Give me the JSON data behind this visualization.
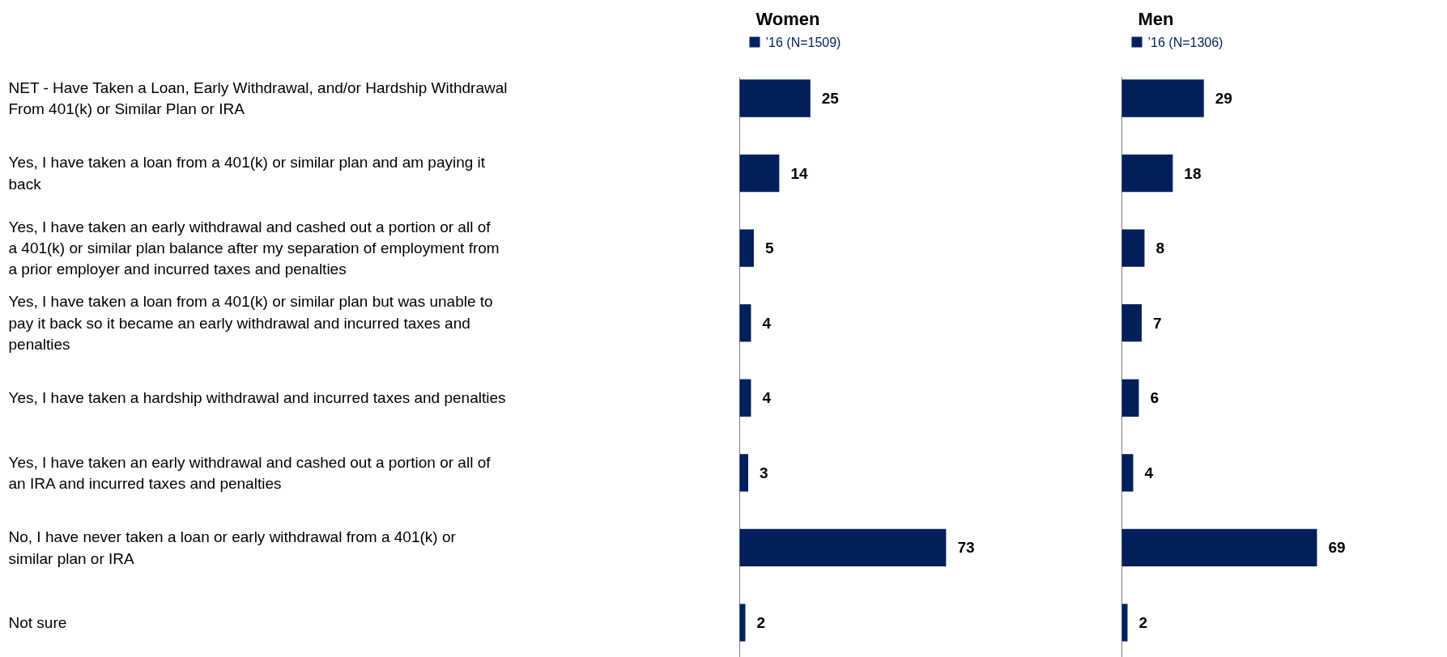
{
  "chart_data": [
    {
      "type": "bar",
      "orientation": "horizontal",
      "title": "Women",
      "legend": "top left",
      "data_labels": true,
      "categories": [
        "NET - Have Taken a Loan, Early Withdrawal, and/or Hardship Withdrawal From 401(k) or Similar Plan or IRA",
        "Yes, I have taken a loan from a 401(k) or similar plan and am paying it back",
        "Yes, I have taken an early withdrawal and cashed out a portion or all of a 401(k) or similar plan balance after my separation of employment from a prior employer and incurred taxes and penalties",
        "Yes, I have taken a loan from a 401(k) or similar plan but was unable to pay it back so it became an early withdrawal and incurred taxes and penalties",
        "Yes, I have taken a hardship withdrawal and incurred taxes and penalties",
        "Yes, I have taken an early withdrawal and cashed out a portion or all of an IRA and incurred taxes and penalties",
        "No, I have never taken a loan or early withdrawal from a 401(k) or similar plan or IRA",
        "Not sure"
      ],
      "series": [
        {
          "name": "’16 (N=1509)",
          "color": "#001f5b",
          "values": [
            25,
            14,
            5,
            4,
            4,
            3,
            73,
            2
          ]
        }
      ]
    },
    {
      "type": "bar",
      "orientation": "horizontal",
      "title": "Men",
      "legend": "top left",
      "data_labels": true,
      "tick_labels": false,
      "categories": [
        "NET - Have Taken a Loan, Early Withdrawal, and/or Hardship Withdrawal From 401(k) or Similar Plan or IRA",
        "Yes, I have taken a loan from a 401(k) or similar plan and am paying it back",
        "Yes, I have taken an early withdrawal and cashed out a portion or all of a 401(k) or similar plan balance after my separation of employment from a prior employer and incurred taxes and penalties",
        "Yes, I have taken a loan from a 401(k) or similar plan but was unable to pay it back so it became an early withdrawal and incurred taxes and penalties",
        "Yes, I have taken a hardship withdrawal and incurred taxes and penalties",
        "Yes, I have taken an early withdrawal and cashed out a portion or all of an IRA and incurred taxes and penalties",
        "No, I have never taken a loan or early withdrawal from a 401(k) or similar plan or IRA",
        "Not sure"
      ],
      "series": [
        {
          "name": "’16 (N=1306)",
          "color": "#001f5b",
          "values": [
            29,
            18,
            8,
            7,
            6,
            4,
            69,
            2
          ]
        }
      ]
    }
  ]
}
